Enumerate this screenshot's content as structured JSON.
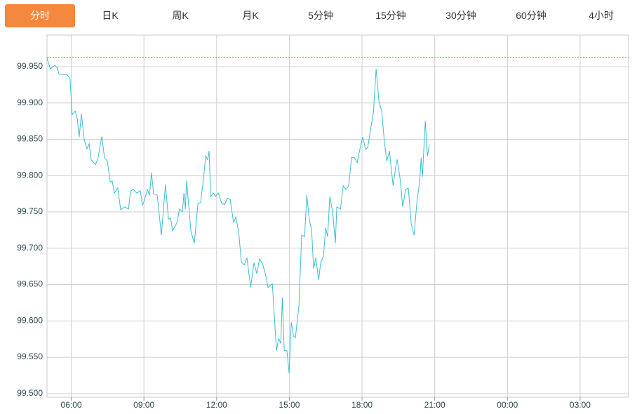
{
  "tabs": [
    "分时",
    "日K",
    "周K",
    "月K",
    "5分钟",
    "15分钟",
    "30分钟",
    "60分钟",
    "4小时"
  ],
  "active_tab": 0,
  "chart_data": {
    "type": "line",
    "color": "#3bbfd0",
    "reference_line": 99.963,
    "reference_color": "#e8603c",
    "grid": true,
    "xlim": [
      5,
      29
    ],
    "xticks": [
      {
        "value": 6,
        "label": "06:00"
      },
      {
        "value": 9,
        "label": "09:00"
      },
      {
        "value": 12,
        "label": "12:00"
      },
      {
        "value": 15,
        "label": "15:00"
      },
      {
        "value": 18,
        "label": "18:00"
      },
      {
        "value": 21,
        "label": "21:00"
      },
      {
        "value": 24,
        "label": "00:00"
      },
      {
        "value": 27,
        "label": "03:00"
      }
    ],
    "ylim": [
      99.495,
      99.9935
    ],
    "yticks": [
      {
        "value": 99.5,
        "label": "99.500"
      },
      {
        "value": 99.55,
        "label": "99.550"
      },
      {
        "value": 99.6,
        "label": "99.600"
      },
      {
        "value": 99.65,
        "label": "99.650"
      },
      {
        "value": 99.7,
        "label": "99.700"
      },
      {
        "value": 99.75,
        "label": "99.750"
      },
      {
        "value": 99.8,
        "label": "99.800"
      },
      {
        "value": 99.85,
        "label": "99.850"
      },
      {
        "value": 99.9,
        "label": "99.900"
      },
      {
        "value": 99.95,
        "label": "99.950"
      }
    ],
    "x": [
      5.0,
      5.14,
      5.32,
      5.43,
      5.49,
      5.81,
      5.95,
      6.04,
      6.16,
      6.25,
      6.33,
      6.42,
      6.54,
      6.65,
      6.74,
      6.82,
      7.0,
      7.11,
      7.26,
      7.37,
      7.49,
      7.61,
      7.69,
      7.78,
      7.92,
      8.04,
      8.21,
      8.36,
      8.45,
      8.56,
      8.71,
      8.85,
      8.94,
      9.03,
      9.14,
      9.23,
      9.31,
      9.4,
      9.55,
      9.72,
      9.89,
      10.01,
      10.1,
      10.18,
      10.36,
      10.47,
      10.59,
      10.65,
      10.71,
      10.76,
      10.82,
      10.94,
      11.08,
      11.23,
      11.34,
      11.46,
      11.55,
      11.63,
      11.69,
      11.75,
      11.86,
      11.95,
      12.07,
      12.21,
      12.33,
      12.44,
      12.56,
      12.7,
      12.79,
      12.91,
      13.02,
      13.14,
      13.25,
      13.4,
      13.54,
      13.66,
      13.77,
      13.89,
      14.01,
      14.12,
      14.3,
      14.47,
      14.56,
      14.65,
      14.71,
      14.79,
      14.9,
      14.99,
      15.08,
      15.17,
      15.25,
      15.4,
      15.51,
      15.63,
      15.72,
      15.83,
      15.92,
      16.0,
      16.09,
      16.21,
      16.29,
      16.41,
      16.5,
      16.58,
      16.67,
      16.79,
      16.9,
      16.96,
      17.11,
      17.22,
      17.34,
      17.45,
      17.57,
      17.68,
      17.8,
      17.92,
      18.03,
      18.15,
      18.24,
      18.35,
      18.47,
      18.58,
      18.7,
      18.81,
      18.93,
      19.02,
      19.13,
      19.28,
      19.39,
      19.45,
      19.57,
      19.68,
      19.8,
      19.91,
      20.03,
      20.15,
      20.26,
      20.38,
      20.44,
      20.49,
      20.61,
      20.7,
      20.78
    ],
    "values": [
      99.962,
      99.947,
      99.952,
      99.948,
      99.94,
      99.939,
      99.934,
      99.884,
      99.889,
      99.878,
      99.853,
      99.885,
      99.849,
      99.837,
      99.844,
      99.822,
      99.815,
      99.825,
      99.854,
      99.825,
      99.82,
      99.791,
      99.793,
      99.776,
      99.783,
      99.753,
      99.757,
      99.754,
      99.779,
      99.781,
      99.776,
      99.779,
      99.759,
      99.767,
      99.781,
      99.773,
      99.804,
      99.775,
      99.773,
      99.718,
      99.788,
      99.74,
      99.742,
      99.724,
      99.735,
      99.754,
      99.75,
      99.776,
      99.754,
      99.793,
      99.77,
      99.723,
      99.707,
      99.762,
      99.763,
      99.796,
      99.827,
      99.822,
      99.834,
      99.771,
      99.776,
      99.771,
      99.776,
      99.762,
      99.76,
      99.769,
      99.767,
      99.735,
      99.743,
      99.723,
      99.681,
      99.677,
      99.687,
      99.646,
      99.68,
      99.665,
      99.685,
      99.679,
      99.665,
      99.646,
      99.651,
      99.559,
      99.576,
      99.569,
      99.632,
      99.559,
      99.559,
      99.528,
      99.598,
      99.579,
      99.577,
      99.622,
      99.718,
      99.716,
      99.773,
      99.738,
      99.725,
      99.672,
      99.687,
      99.656,
      99.68,
      99.689,
      99.728,
      99.716,
      99.771,
      99.75,
      99.707,
      99.757,
      99.754,
      99.786,
      99.781,
      99.786,
      99.825,
      99.825,
      99.818,
      99.838,
      99.853,
      99.836,
      99.839,
      99.863,
      99.887,
      99.947,
      99.902,
      99.889,
      99.844,
      99.82,
      99.834,
      99.786,
      99.812,
      99.822,
      99.796,
      99.757,
      99.781,
      99.783,
      99.733,
      99.718,
      99.762,
      99.793,
      99.825,
      99.798,
      99.875,
      99.827,
      99.843
    ]
  }
}
